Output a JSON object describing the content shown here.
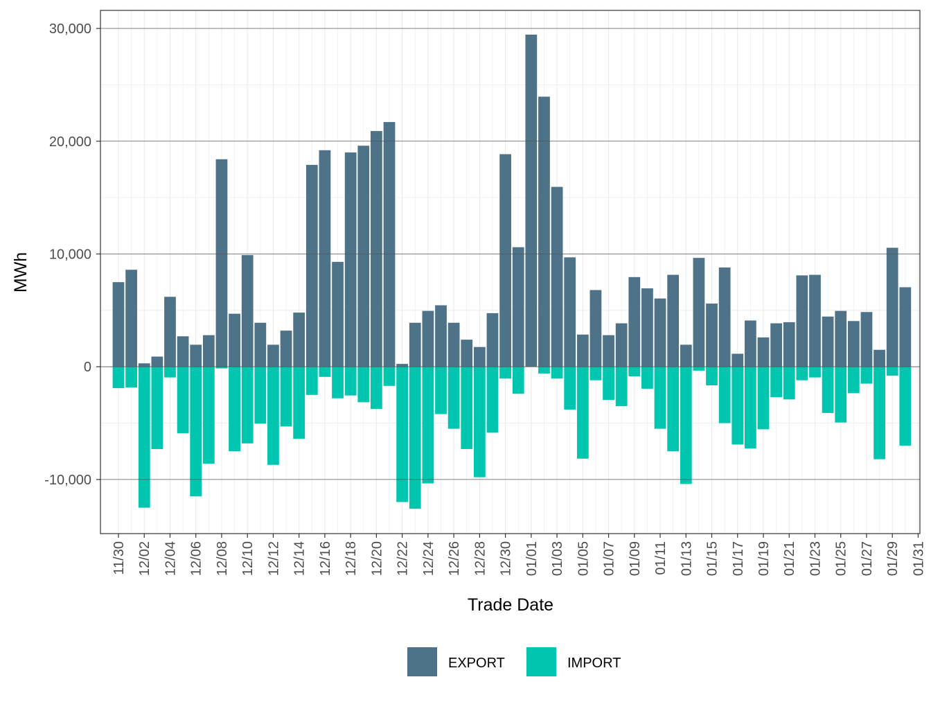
{
  "chart_data": {
    "type": "bar",
    "stacked": true,
    "xlabel": "Trade Date",
    "ylabel": "MWh",
    "ylim": [
      -14800,
      31600
    ],
    "y_ticks": [
      -10000,
      0,
      10000,
      20000,
      30000
    ],
    "y_tick_labels": [
      "-10,000",
      "0",
      "10,000",
      "20,000",
      "30,000"
    ],
    "grid": true,
    "legend_position": "bottom",
    "x_tick_labels": [
      "11/30",
      "12/02",
      "12/04",
      "12/06",
      "12/08",
      "12/10",
      "12/12",
      "12/14",
      "12/16",
      "12/18",
      "12/20",
      "12/22",
      "12/24",
      "12/26",
      "12/28",
      "12/30",
      "01/01",
      "01/03",
      "01/05",
      "01/07",
      "01/09",
      "01/11",
      "01/13",
      "01/15",
      "01/17",
      "01/19",
      "01/21",
      "01/23",
      "01/25",
      "01/27",
      "01/29",
      "01/31"
    ],
    "categories": [
      "11/30",
      "12/01",
      "12/02",
      "12/03",
      "12/04",
      "12/05",
      "12/06",
      "12/07",
      "12/08",
      "12/09",
      "12/10",
      "12/11",
      "12/12",
      "12/13",
      "12/14",
      "12/15",
      "12/16",
      "12/17",
      "12/18",
      "12/19",
      "12/20",
      "12/21",
      "12/22",
      "12/23",
      "12/24",
      "12/25",
      "12/26",
      "12/27",
      "12/28",
      "12/29",
      "12/30",
      "12/31",
      "01/01",
      "01/02",
      "01/03",
      "01/04",
      "01/05",
      "01/06",
      "01/07",
      "01/08",
      "01/09",
      "01/10",
      "01/11",
      "01/12",
      "01/13",
      "01/14",
      "01/15",
      "01/16",
      "01/17",
      "01/18",
      "01/19",
      "01/20",
      "01/21",
      "01/22",
      "01/23",
      "01/24",
      "01/25",
      "01/26",
      "01/27",
      "01/28",
      "01/29",
      "01/30",
      "01/31"
    ],
    "series": [
      {
        "name": "EXPORT",
        "color": "#4e7388",
        "values": [
          7500,
          8600,
          300,
          900,
          6200,
          2700,
          1950,
          2800,
          18400,
          4700,
          9900,
          3900,
          1950,
          3200,
          4800,
          17900,
          19200,
          9300,
          19000,
          19600,
          20900,
          21700,
          250,
          3900,
          4950,
          5450,
          3900,
          2400,
          1750,
          4750,
          18850,
          10600,
          29450,
          23950,
          15950,
          9700,
          2850,
          6800,
          2800,
          3850,
          7950,
          6950,
          6050,
          8150,
          1950,
          9650,
          5600,
          8800,
          1150,
          4100,
          2600,
          3850,
          3950,
          8100,
          8150,
          4450,
          4950,
          4050,
          4850,
          1500,
          10550,
          7050,
          0
        ]
      },
      {
        "name": "IMPORT",
        "color": "#00c5af",
        "values": [
          -1900,
          -1850,
          -12500,
          -7300,
          -950,
          -5900,
          -11500,
          -8600,
          -150,
          -7500,
          -6800,
          -5050,
          -8700,
          -5300,
          -6400,
          -2500,
          -900,
          -2800,
          -2550,
          -3150,
          -3750,
          -1700,
          -12000,
          -12600,
          -10350,
          -4200,
          -5500,
          -7300,
          -9800,
          -5850,
          -1050,
          -2400,
          0,
          -600,
          -1050,
          -3800,
          -8150,
          -1200,
          -2950,
          -3500,
          -850,
          -1950,
          -5500,
          -7500,
          -10400,
          -350,
          -1650,
          -5000,
          -6900,
          -7250,
          -5550,
          -2700,
          -2900,
          -1200,
          -950,
          -4100,
          -4950,
          -2350,
          -1500,
          -8200,
          -800,
          -7000,
          0
        ]
      }
    ]
  }
}
